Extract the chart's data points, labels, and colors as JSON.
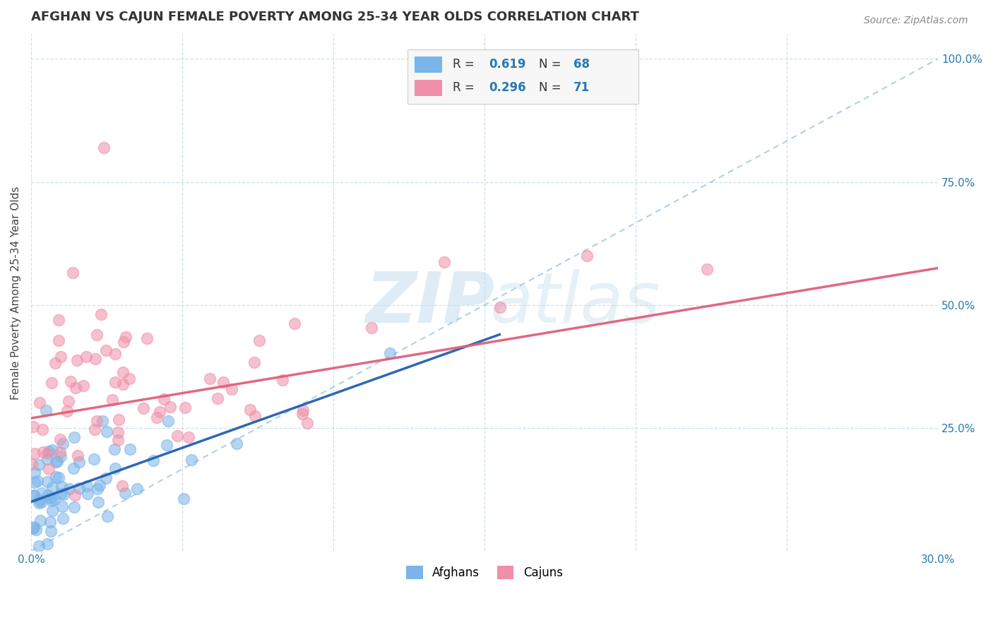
{
  "title": "AFGHAN VS CAJUN FEMALE POVERTY AMONG 25-34 YEAR OLDS CORRELATION CHART",
  "source": "Source: ZipAtlas.com",
  "ylabel_label": "Female Poverty Among 25-34 Year Olds",
  "xlim": [
    0.0,
    0.3
  ],
  "ylim": [
    0.0,
    1.05
  ],
  "x_ticks": [
    0.0,
    0.05,
    0.1,
    0.15,
    0.2,
    0.25,
    0.3
  ],
  "y_ticks": [
    0.0,
    0.25,
    0.5,
    0.75,
    1.0
  ],
  "afghan_color": "#7ab4e8",
  "cajun_color": "#f08fa8",
  "afghan_R": 0.619,
  "afghan_N": 68,
  "cajun_R": 0.296,
  "cajun_N": 71,
  "background_color": "#ffffff",
  "grid_color": "#c8dde8",
  "axis_label_color": "#2979b0",
  "legend_color": "#2979b0",
  "afghan_line_x0": 0.0,
  "afghan_line_y0": 0.1,
  "afghan_line_x1": 0.155,
  "afghan_line_y1": 0.44,
  "cajun_line_x0": 0.0,
  "cajun_line_y0": 0.27,
  "cajun_line_x1": 0.3,
  "cajun_line_y1": 0.575,
  "diag_color": "#90bcd8",
  "watermark_zip_color": "#c5ddef",
  "watermark_atlas_color": "#c8e2ee"
}
